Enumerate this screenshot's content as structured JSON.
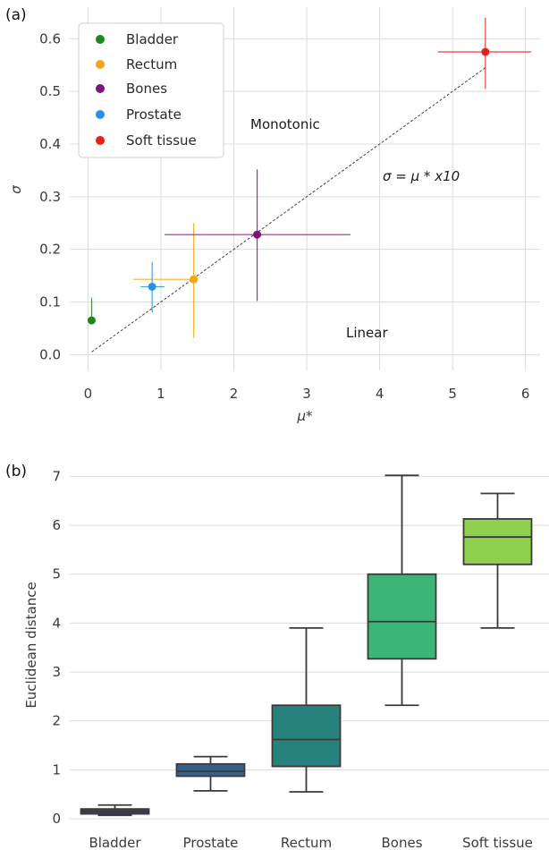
{
  "chart_data": [
    {
      "panel_label": "(a)",
      "type": "scatter",
      "xlabel": "μ*",
      "ylabel": "σ",
      "xlim": [
        -0.25,
        6.2
      ],
      "ylim": [
        -0.03,
        0.66
      ],
      "xticks": [
        0,
        1,
        2,
        3,
        4,
        5,
        6
      ],
      "yticks": [
        0.0,
        0.1,
        0.2,
        0.3,
        0.4,
        0.5,
        0.6
      ],
      "xtick_labels": [
        "0",
        "1",
        "2",
        "3",
        "4",
        "5",
        "6"
      ],
      "ytick_labels": [
        "0.0",
        "0.1",
        "0.2",
        "0.3",
        "0.4",
        "0.5",
        "0.6"
      ],
      "grid": true,
      "legend_position": "top-left",
      "annotations": {
        "monotonic": "Monotonic",
        "linear": "Linear",
        "line_label": "σ = μ * x10"
      },
      "reference_line": {
        "x": [
          0.05,
          5.45
        ],
        "y": [
          0.005,
          0.545
        ]
      },
      "series": [
        {
          "name": "Bladder",
          "color": "#1a8a1a",
          "x": 0.05,
          "y": 0.065,
          "xerr": [
            0.05,
            0.05
          ],
          "yerr": [
            0.065,
            0.108
          ]
        },
        {
          "name": "Rectum",
          "color": "#f2a516",
          "x": 1.45,
          "y": 0.143,
          "xerr": [
            0.62,
            1.45
          ],
          "yerr": [
            0.032,
            0.25
          ]
        },
        {
          "name": "Bones",
          "color": "#7d147d",
          "x": 2.32,
          "y": 0.228,
          "xerr": [
            1.05,
            3.6
          ],
          "yerr": [
            0.102,
            0.352
          ]
        },
        {
          "name": "Prostate",
          "color": "#2b8fe8",
          "x": 0.88,
          "y": 0.129,
          "xerr": [
            0.72,
            1.05
          ],
          "yerr": [
            0.08,
            0.176
          ]
        },
        {
          "name": "Soft tissue",
          "color": "#e8201c",
          "x": 5.45,
          "y": 0.575,
          "xerr": [
            4.8,
            6.08
          ],
          "yerr": [
            0.505,
            0.64
          ]
        }
      ]
    },
    {
      "panel_label": "(b)",
      "type": "box",
      "ylabel": "Euclidean distance",
      "ylim": [
        -0.2,
        7.3
      ],
      "yticks": [
        0,
        1,
        2,
        3,
        4,
        5,
        6,
        7
      ],
      "ytick_labels": [
        "0",
        "1",
        "2",
        "3",
        "4",
        "5",
        "6",
        "7"
      ],
      "grid": true,
      "categories": [
        "Bladder",
        "Prostate",
        "Rectum",
        "Bones",
        "Soft tissue"
      ],
      "boxes": [
        {
          "category": "Bladder",
          "min": 0.07,
          "q1": 0.1,
          "median": 0.15,
          "q3": 0.2,
          "max": 0.28,
          "color": "#3a3c6e"
        },
        {
          "category": "Prostate",
          "min": 0.57,
          "q1": 0.87,
          "median": 0.97,
          "q3": 1.12,
          "max": 1.27,
          "color": "#35618c"
        },
        {
          "category": "Rectum",
          "min": 0.55,
          "q1": 1.07,
          "median": 1.62,
          "q3": 2.32,
          "max": 3.9,
          "color": "#27817d"
        },
        {
          "category": "Bones",
          "min": 2.32,
          "q1": 3.27,
          "median": 4.03,
          "q3": 5.0,
          "max": 7.02,
          "color": "#3cb578"
        },
        {
          "category": "Soft tissue",
          "min": 3.9,
          "q1": 5.2,
          "median": 5.76,
          "q3": 6.13,
          "max": 6.65,
          "color": "#8fd14f"
        }
      ]
    }
  ]
}
